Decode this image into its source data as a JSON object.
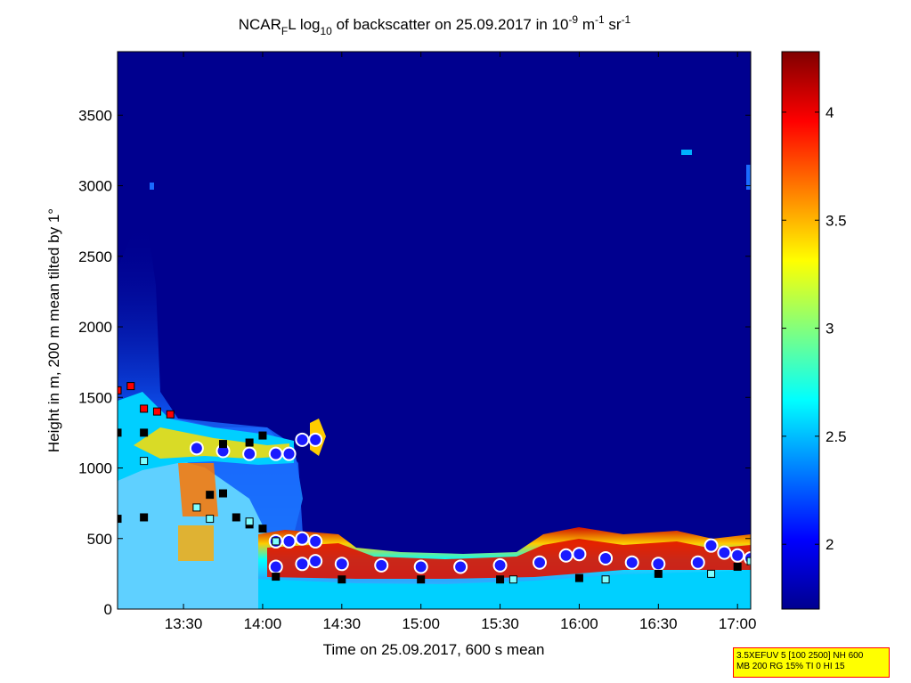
{
  "chart_data": {
    "type": "heatmap",
    "title": {
      "prefix": "NCAR",
      "sub1": "F",
      "mid1": "L log",
      "sub2": "10",
      "mid2": " of backscatter on 25.09.2017 in 10",
      "sup1": "-9",
      "mid3": " m",
      "sup2": "-1",
      "mid4": " sr",
      "sup3": "-1"
    },
    "xlabel": "Time on 25.09.2017, 600 s mean",
    "ylabel": "Height in m, 200 m mean tilted by 1°",
    "x_ticks": [
      "13:30",
      "14:00",
      "14:30",
      "15:00",
      "15:30",
      "16:00",
      "16:30",
      "17:00"
    ],
    "x_tick_values": [
      "13:30",
      "14:00",
      "14:30",
      "15:00",
      "15:30",
      "16:00",
      "16:30",
      "17:00"
    ],
    "x_range": [
      "13:05",
      "17:05"
    ],
    "y_ticks": [
      "0",
      "500",
      "1000",
      "1500",
      "2000",
      "2500",
      "3000",
      "3500"
    ],
    "y_tick_values": [
      0,
      500,
      1000,
      1500,
      2000,
      2500,
      3000,
      3500
    ],
    "ylim": [
      0,
      3950
    ],
    "colorbar": {
      "ticks": [
        "2",
        "2.5",
        "3",
        "3.5",
        "4"
      ],
      "tick_values": [
        2,
        2.5,
        3,
        3.5,
        4
      ],
      "range": [
        1.7,
        4.28
      ],
      "colormap": "jet"
    },
    "background_color": "#00008f",
    "layers": [
      {
        "name": "boundary layer top",
        "x": [
          "14:00",
          "14:30",
          "15:00",
          "15:30",
          "16:00",
          "16:30",
          "17:00"
        ],
        "y": [
          480,
          380,
          360,
          350,
          460,
          480,
          450
        ]
      },
      {
        "name": "elevated layer",
        "x": [
          "13:05",
          "13:30",
          "14:00",
          "14:20"
        ],
        "y": [
          1550,
          1200,
          1150,
          1200
        ]
      }
    ],
    "series": [
      {
        "name": "blue circles",
        "color": "#1a1aff",
        "points": [
          [
            "13:35",
            1140
          ],
          [
            "13:45",
            1120
          ],
          [
            "13:55",
            1100
          ],
          [
            "14:05",
            1100
          ],
          [
            "14:10",
            1100
          ],
          [
            "14:15",
            1200
          ],
          [
            "14:20",
            1200
          ],
          [
            "14:05",
            480
          ],
          [
            "14:10",
            480
          ],
          [
            "14:15",
            500
          ],
          [
            "14:20",
            480
          ],
          [
            "14:05",
            300
          ],
          [
            "14:15",
            320
          ],
          [
            "14:20",
            340
          ],
          [
            "14:30",
            320
          ],
          [
            "14:45",
            310
          ],
          [
            "15:00",
            300
          ],
          [
            "15:15",
            300
          ],
          [
            "15:30",
            310
          ],
          [
            "15:45",
            330
          ],
          [
            "15:55",
            380
          ],
          [
            "16:00",
            390
          ],
          [
            "16:10",
            360
          ],
          [
            "16:20",
            330
          ],
          [
            "16:30",
            320
          ],
          [
            "16:45",
            330
          ],
          [
            "16:50",
            450
          ],
          [
            "16:55",
            400
          ],
          [
            "17:00",
            380
          ],
          [
            "17:05",
            360
          ]
        ]
      },
      {
        "name": "black squares",
        "color": "#000000",
        "points": [
          [
            "13:05",
            1250
          ],
          [
            "13:15",
            1250
          ],
          [
            "13:05",
            640
          ],
          [
            "13:15",
            650
          ],
          [
            "13:45",
            1170
          ],
          [
            "13:55",
            1180
          ],
          [
            "14:00",
            1230
          ],
          [
            "13:40",
            810
          ],
          [
            "13:45",
            820
          ],
          [
            "13:50",
            650
          ],
          [
            "13:55",
            600
          ],
          [
            "14:00",
            570
          ],
          [
            "14:05",
            230
          ],
          [
            "14:30",
            210
          ],
          [
            "15:00",
            210
          ],
          [
            "15:30",
            210
          ],
          [
            "16:00",
            220
          ],
          [
            "16:30",
            250
          ],
          [
            "17:00",
            300
          ]
        ]
      },
      {
        "name": "red squares",
        "color": "#ff0000",
        "points": [
          [
            "13:05",
            1550
          ],
          [
            "13:10",
            1580
          ],
          [
            "13:15",
            1420
          ],
          [
            "13:20",
            1400
          ],
          [
            "13:25",
            1380
          ]
        ]
      },
      {
        "name": "cyan squares",
        "color": "#7fffff",
        "points": [
          [
            "13:15",
            1050
          ],
          [
            "13:35",
            720
          ],
          [
            "13:40",
            640
          ],
          [
            "13:55",
            620
          ],
          [
            "14:05",
            480
          ],
          [
            "15:35",
            210
          ],
          [
            "16:10",
            210
          ],
          [
            "16:50",
            250
          ],
          [
            "17:05",
            340
          ]
        ]
      }
    ]
  },
  "info_box": {
    "line1": "3.5XEFUV 5 [100 2500] NH 600",
    "line2": "MB 200 RG 15% TI 0 HI 15"
  }
}
